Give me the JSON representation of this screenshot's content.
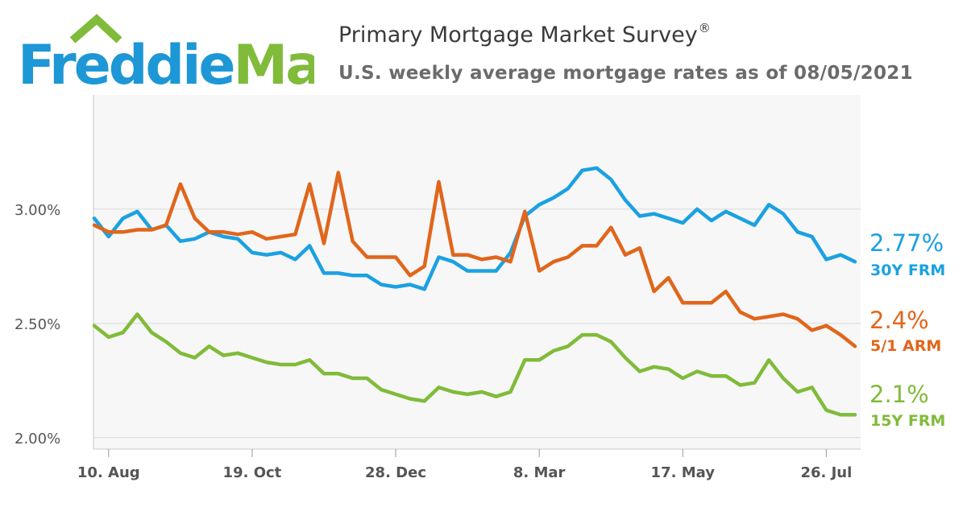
{
  "header": {
    "logo_text": "FreddieMac",
    "title": "Primary Mortgage Market Survey",
    "title_mark": "®",
    "subtitle": "U.S. weekly average mortgage rates as of 08/05/2021"
  },
  "colors": {
    "frm30": "#1ba1e2",
    "arm51": "#e0661c",
    "frm15": "#80bb3a",
    "logo_blue": "#1d97d6",
    "logo_green": "#80bb3a"
  },
  "chart_data": {
    "type": "line",
    "x_tick_labels": [
      "10. Aug",
      "19. Oct",
      "28. Dec",
      "8. Mar",
      "17. May",
      "26. Jul"
    ],
    "x_tick_index": [
      1,
      11,
      21,
      31,
      41,
      51
    ],
    "y_tick_labels": [
      "2.00%",
      "2.50%",
      "3.00%"
    ],
    "y_tick_values": [
      2.0,
      2.5,
      3.0
    ],
    "ylim": [
      1.95,
      3.5
    ],
    "grid": true,
    "series": [
      {
        "key": "frm30",
        "name": "30Y FRM",
        "last_label": "2.77%",
        "values": [
          2.96,
          2.88,
          2.96,
          2.99,
          2.91,
          2.93,
          2.86,
          2.87,
          2.9,
          2.88,
          2.87,
          2.81,
          2.8,
          2.81,
          2.78,
          2.84,
          2.72,
          2.72,
          2.71,
          2.71,
          2.67,
          2.66,
          2.67,
          2.65,
          2.79,
          2.77,
          2.73,
          2.73,
          2.73,
          2.81,
          2.97,
          3.02,
          3.05,
          3.09,
          3.17,
          3.18,
          3.13,
          3.04,
          2.97,
          2.98,
          2.96,
          2.94,
          3.0,
          2.95,
          2.99,
          2.96,
          2.93,
          3.02,
          2.98,
          2.9,
          2.88,
          2.78,
          2.8,
          2.77
        ]
      },
      {
        "key": "arm51",
        "name": "5/1 ARM",
        "last_label": "2.4%",
        "values": [
          2.93,
          2.9,
          2.9,
          2.91,
          2.91,
          2.93,
          3.11,
          2.96,
          2.9,
          2.9,
          2.89,
          2.9,
          2.87,
          2.88,
          2.89,
          3.11,
          2.85,
          3.16,
          2.86,
          2.79,
          2.79,
          2.79,
          2.71,
          2.75,
          3.12,
          2.8,
          2.8,
          2.78,
          2.79,
          2.77,
          2.99,
          2.73,
          2.77,
          2.79,
          2.84,
          2.84,
          2.92,
          2.8,
          2.83,
          2.64,
          2.7,
          2.59,
          2.59,
          2.59,
          2.64,
          2.55,
          2.52,
          2.53,
          2.54,
          2.52,
          2.47,
          2.49,
          2.45,
          2.4
        ]
      },
      {
        "key": "frm15",
        "name": "15Y FRM",
        "last_label": "2.1%",
        "values": [
          2.49,
          2.44,
          2.46,
          2.54,
          2.46,
          2.42,
          2.37,
          2.35,
          2.4,
          2.36,
          2.37,
          2.35,
          2.33,
          2.32,
          2.32,
          2.34,
          2.28,
          2.28,
          2.26,
          2.26,
          2.21,
          2.19,
          2.17,
          2.16,
          2.22,
          2.2,
          2.19,
          2.2,
          2.18,
          2.2,
          2.34,
          2.34,
          2.38,
          2.4,
          2.45,
          2.45,
          2.42,
          2.35,
          2.29,
          2.31,
          2.3,
          2.26,
          2.29,
          2.27,
          2.27,
          2.23,
          2.24,
          2.34,
          2.26,
          2.2,
          2.22,
          2.12,
          2.1,
          2.1
        ]
      }
    ]
  }
}
